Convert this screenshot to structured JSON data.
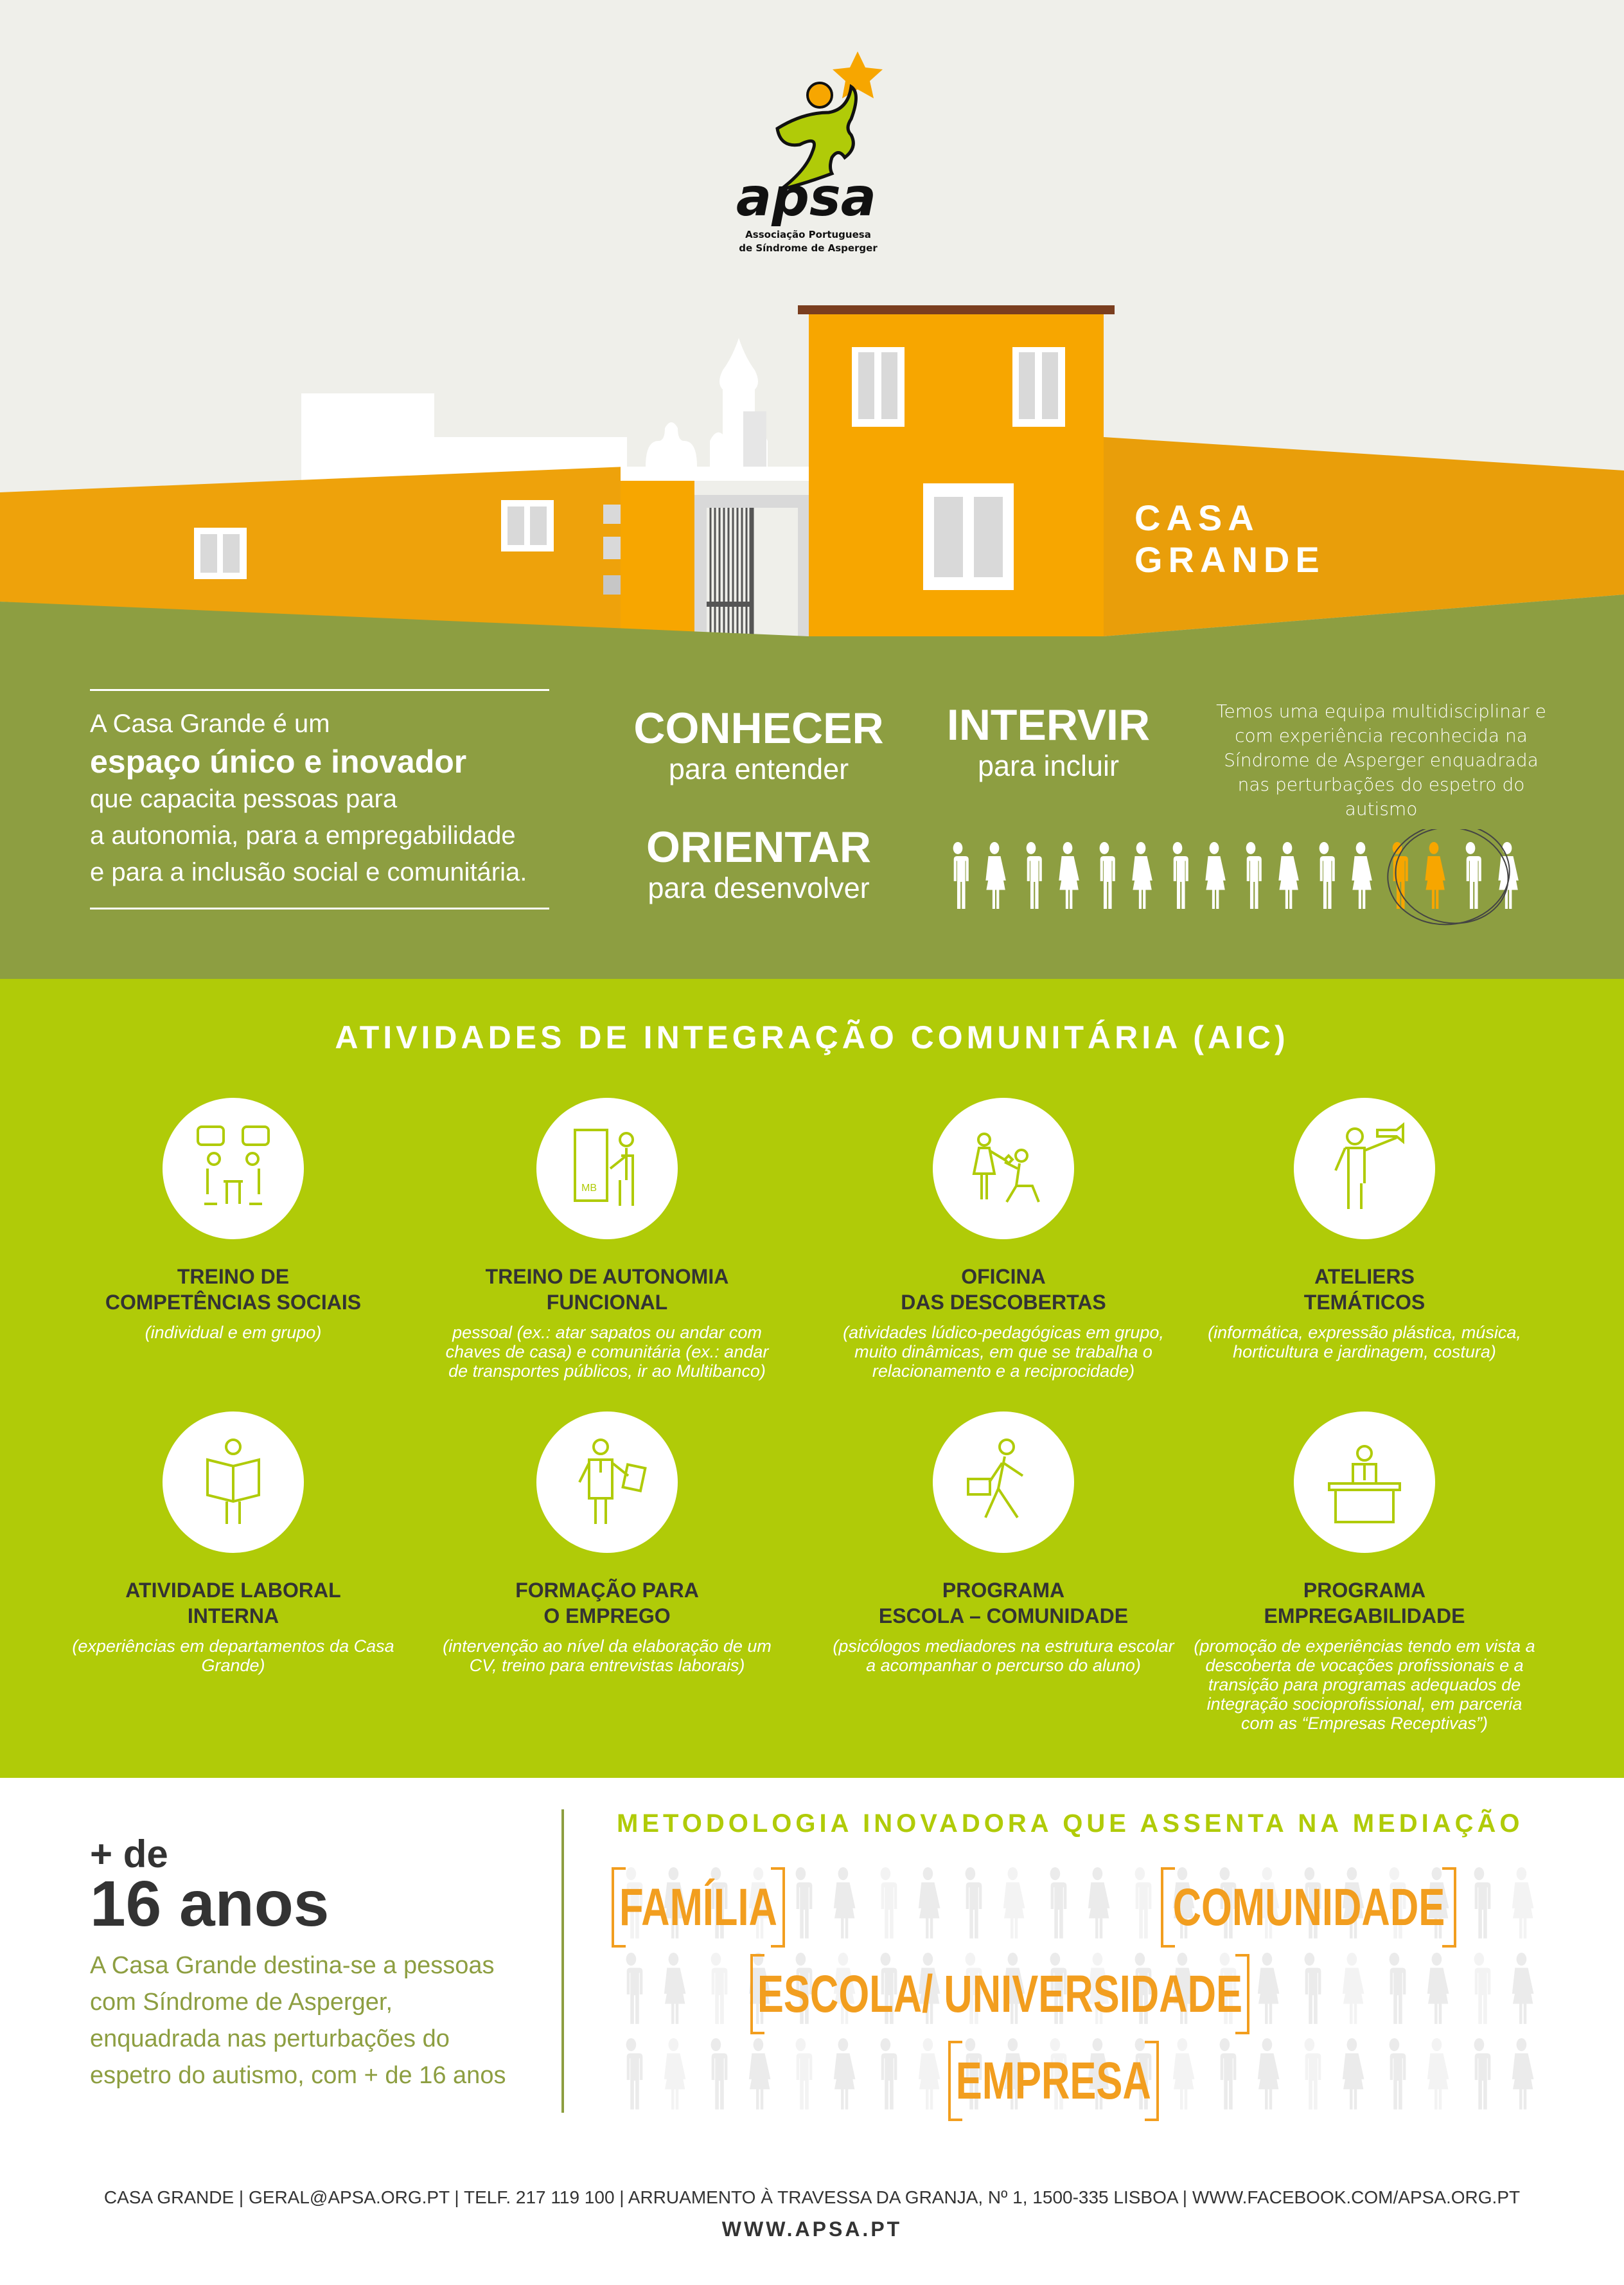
{
  "logo": {
    "wordmark": "apsa",
    "subtitle_line1": "Associação Portuguesa",
    "subtitle_line2": "de Síndrome de Asperger"
  },
  "hero": {
    "title_line1": "CASA",
    "title_line2": "GRANDE"
  },
  "intro": {
    "line1": "A Casa Grande é um",
    "highlight": "espaço único e inovador",
    "line2": "que capacita pessoas para",
    "line3": "a autonomia, para a empregabilidade",
    "line4": "e para a inclusão social e comunitária."
  },
  "pillars": [
    {
      "title": "CONHECER",
      "subtitle": "para entender"
    },
    {
      "title": "ORIENTAR",
      "subtitle": "para desenvolver"
    },
    {
      "title": "INTERVIR",
      "subtitle": "para incluir"
    }
  ],
  "team_text": "Temos uma equipa multidisciplinar e com experiência reconhecida na Síndrome de Asperger enquadrada nas perturbações do espetro do autismo",
  "people_row": {
    "count": 16,
    "highlighted": [
      12,
      13
    ],
    "highlight_color": "#f7a600"
  },
  "aic": {
    "title": "ATIVIDADES DE INTEGRAÇÃO COMUNITÁRIA (AIC)",
    "items": [
      {
        "icon": "conversation-icon",
        "title1": "TREINO DE",
        "title2": "COMPETÊNCIAS SOCIAIS",
        "desc": "(individual e em grupo)"
      },
      {
        "icon": "atm-icon",
        "title1": "TREINO DE AUTONOMIA",
        "title2": "FUNCIONAL",
        "desc": "pessoal (ex.: atar sapatos ou andar com chaves de casa) e comunitária (ex.: andar de transportes públicos, ir ao Multibanco)"
      },
      {
        "icon": "discovery-icon",
        "title1": "OFICINA",
        "title2": "DAS DESCOBERTAS",
        "desc": "(atividades lúdico-pedagógicas em grupo, muito dinâmicas, em que se trabalha o relacionamento e a reciprocidade)"
      },
      {
        "icon": "trumpet-icon",
        "title1": "ATELIERS",
        "title2": "TEMÁTICOS",
        "desc": "(informática, expressão plástica, música, horticultura e jardinagem, costura)"
      },
      {
        "icon": "reading-worker-icon",
        "title1": "ATIVIDADE LABORAL",
        "title2": "INTERNA",
        "desc": "(experiências em departamentos da Casa Grande)"
      },
      {
        "icon": "cv-icon",
        "title1": "FORMAÇÃO PARA",
        "title2": "O EMPREGO",
        "desc": "(intervenção ao nível da elaboração de um CV, treino para entrevistas laborais)"
      },
      {
        "icon": "walking-briefcase-icon",
        "title1": "PROGRAMA",
        "title2": "ESCOLA – COMUNIDADE",
        "desc": "(psicólogos mediadores na estrutura escolar a acompanhar o percurso do aluno)"
      },
      {
        "icon": "desk-worker-icon",
        "title1": "PROGRAMA",
        "title2": "EMPREGABILIDADE",
        "desc": "(promoção de experiências tendo em vista a descoberta de vocações profissionais e a transição para programas adequados de integração socioprofissional, em parceria com as “Empresas Receptivas”)"
      }
    ]
  },
  "age": {
    "prefix": "+ de",
    "value": "16 anos",
    "desc_lines": [
      "A Casa Grande destina-se a pessoas",
      "com Síndrome de Asperger,",
      "enquadrada nas perturbações do",
      "espetro do autismo, com + de 16 anos"
    ]
  },
  "methodology": {
    "title": "METODOLOGIA INOVADORA QUE ASSENTA NA MEDIAÇÃO",
    "words": [
      "FAMÍLIA",
      "COMUNIDADE",
      "ESCOLA/ UNIVERSIDADE",
      "EMPRESA"
    ]
  },
  "footer": {
    "contacts": "CASA GRANDE  |  GERAL@APSA.ORG.PT  |  TELF. 217 119 100  | ARRUAMENTO À TRAVESSA DA GRANJA, Nº 1, 1500-335 LISBOA  |  WWW.FACEBOOK.COM/APSA.ORG.PT",
    "website": "WWW.APSA.PT"
  },
  "colors": {
    "sky": "#efefea",
    "orange": "#f7a600",
    "olive": "#8d9e41",
    "lime": "#b0cb08",
    "accent_orange": "#f29e1f",
    "dark": "#333333"
  }
}
